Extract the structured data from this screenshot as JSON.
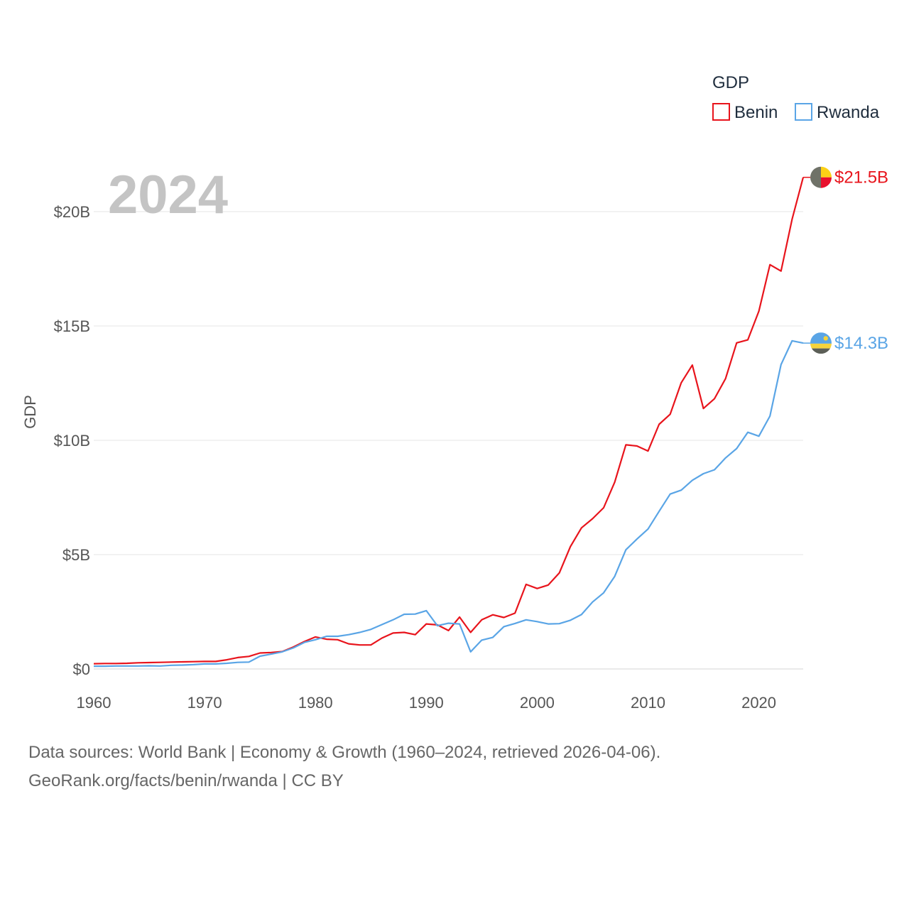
{
  "chart_data": {
    "type": "line",
    "title": "",
    "year_label": "2024",
    "ylabel": "GDP",
    "xlabel": "",
    "xlim": [
      1960,
      2024
    ],
    "ylim": [
      0,
      22
    ],
    "x_ticks": [
      1960,
      1970,
      1980,
      1990,
      2000,
      2010,
      2020
    ],
    "y_ticks": [
      {
        "value": 0,
        "label": "$0"
      },
      {
        "value": 5,
        "label": "$5B"
      },
      {
        "value": 10,
        "label": "$10B"
      },
      {
        "value": 15,
        "label": "$15B"
      },
      {
        "value": 20,
        "label": "$20B"
      }
    ],
    "legend": {
      "title": "GDP",
      "position": "top-right"
    },
    "grid": true,
    "years": [
      1960,
      1961,
      1962,
      1963,
      1964,
      1965,
      1966,
      1967,
      1968,
      1969,
      1970,
      1971,
      1972,
      1973,
      1974,
      1975,
      1976,
      1977,
      1978,
      1979,
      1980,
      1981,
      1982,
      1983,
      1984,
      1985,
      1986,
      1987,
      1988,
      1989,
      1990,
      1991,
      1992,
      1993,
      1994,
      1995,
      1996,
      1997,
      1998,
      1999,
      2000,
      2001,
      2002,
      2003,
      2004,
      2005,
      2006,
      2007,
      2008,
      2009,
      2010,
      2011,
      2012,
      2013,
      2014,
      2015,
      2016,
      2017,
      2018,
      2019,
      2020,
      2021,
      2022,
      2023,
      2024
    ],
    "series": [
      {
        "name": "Benin",
        "color": "#e8141c",
        "end_label": "$21.5B",
        "values": [
          0.23,
          0.24,
          0.24,
          0.25,
          0.27,
          0.28,
          0.29,
          0.3,
          0.31,
          0.32,
          0.33,
          0.33,
          0.4,
          0.5,
          0.55,
          0.7,
          0.72,
          0.76,
          0.96,
          1.2,
          1.4,
          1.3,
          1.28,
          1.1,
          1.05,
          1.05,
          1.35,
          1.57,
          1.6,
          1.5,
          1.97,
          1.93,
          1.68,
          2.27,
          1.6,
          2.15,
          2.37,
          2.25,
          2.44,
          3.7,
          3.52,
          3.67,
          4.2,
          5.35,
          6.17,
          6.57,
          7.05,
          8.17,
          9.8,
          9.75,
          9.53,
          10.7,
          11.14,
          12.52,
          13.29,
          11.39,
          11.82,
          12.7,
          14.26,
          14.39,
          15.65,
          17.68,
          17.4,
          19.67,
          21.5
        ]
      },
      {
        "name": "Rwanda",
        "color": "#5aa5e6",
        "end_label": "$14.3B",
        "values": [
          0.12,
          0.12,
          0.13,
          0.13,
          0.13,
          0.14,
          0.13,
          0.16,
          0.17,
          0.19,
          0.22,
          0.22,
          0.25,
          0.29,
          0.3,
          0.56,
          0.65,
          0.75,
          0.92,
          1.16,
          1.28,
          1.43,
          1.43,
          1.5,
          1.6,
          1.73,
          1.94,
          2.15,
          2.39,
          2.4,
          2.55,
          1.89,
          2.0,
          1.97,
          0.75,
          1.26,
          1.38,
          1.85,
          1.99,
          2.15,
          2.07,
          1.97,
          1.98,
          2.13,
          2.38,
          2.93,
          3.33,
          4.05,
          5.21,
          5.68,
          6.12,
          6.89,
          7.65,
          7.82,
          8.25,
          8.54,
          8.71,
          9.23,
          9.64,
          10.35,
          10.18,
          11.06,
          13.31,
          14.35,
          14.25
        ]
      }
    ]
  },
  "source": {
    "line1": "Data sources: World Bank | Economy & Growth (1960–2024, retrieved 2026-04-06).",
    "line2": "GeoRank.org/facts/benin/rwanda | CC BY"
  },
  "icons": {
    "benin": "benin-flag-icon",
    "rwanda": "rwanda-flag-icon"
  }
}
